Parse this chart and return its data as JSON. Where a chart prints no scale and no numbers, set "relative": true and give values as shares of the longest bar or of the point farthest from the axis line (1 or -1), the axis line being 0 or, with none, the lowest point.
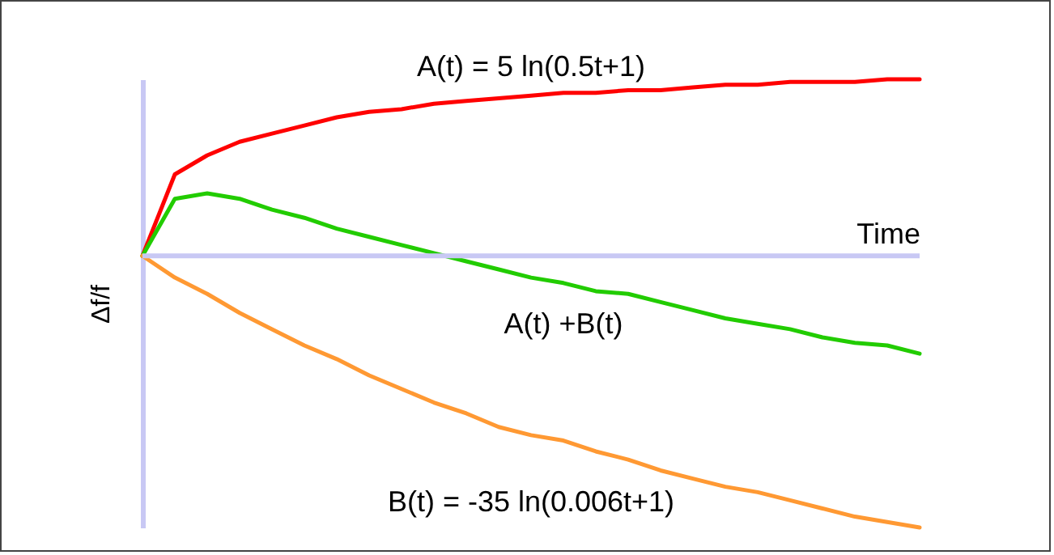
{
  "chart_data": {
    "type": "line",
    "relative": true,
    "xlabel": "Time",
    "ylabel": "Δf/f",
    "categories": [
      null,
      null,
      null,
      null,
      null,
      null,
      null,
      null,
      null,
      null,
      null,
      null,
      null,
      null,
      null,
      null,
      null,
      null,
      null,
      null,
      null,
      null,
      null,
      null,
      null
    ],
    "series": [
      {
        "name": "A(t) = 5 ln(0.5t+1)",
        "color": "#ff0000",
        "values": [
          0,
          0.3,
          0.37,
          0.42,
          0.45,
          0.48,
          0.51,
          0.53,
          0.54,
          0.56,
          0.57,
          0.58,
          0.59,
          0.6,
          0.6,
          0.61,
          0.61,
          0.62,
          0.63,
          0.63,
          0.64,
          0.64,
          0.64,
          0.65,
          0.65
        ]
      },
      {
        "name": "A(t) +B(t)",
        "color": "#22cc00",
        "values": [
          0,
          0.21,
          0.23,
          0.21,
          0.17,
          0.14,
          0.1,
          0.07,
          0.04,
          0.01,
          -0.02,
          -0.05,
          -0.08,
          -0.1,
          -0.13,
          -0.14,
          -0.17,
          -0.2,
          -0.23,
          -0.25,
          -0.27,
          -0.3,
          -0.32,
          -0.33,
          -0.36
        ]
      },
      {
        "name": "B(t) = -35 ln(0.006t+1)",
        "color": "#ff9933",
        "values": [
          0,
          -0.08,
          -0.14,
          -0.21,
          -0.27,
          -0.33,
          -0.38,
          -0.44,
          -0.49,
          -0.54,
          -0.58,
          -0.63,
          -0.66,
          -0.68,
          -0.72,
          -0.75,
          -0.79,
          -0.82,
          -0.85,
          -0.87,
          -0.9,
          -0.93,
          -0.96,
          -0.98,
          -1
        ]
      }
    ],
    "ref_lines": [
      {
        "axis": "y",
        "value": 0,
        "color": "#c8c8f4"
      }
    ],
    "legend": false,
    "marker": "none",
    "line_style": "solid"
  }
}
